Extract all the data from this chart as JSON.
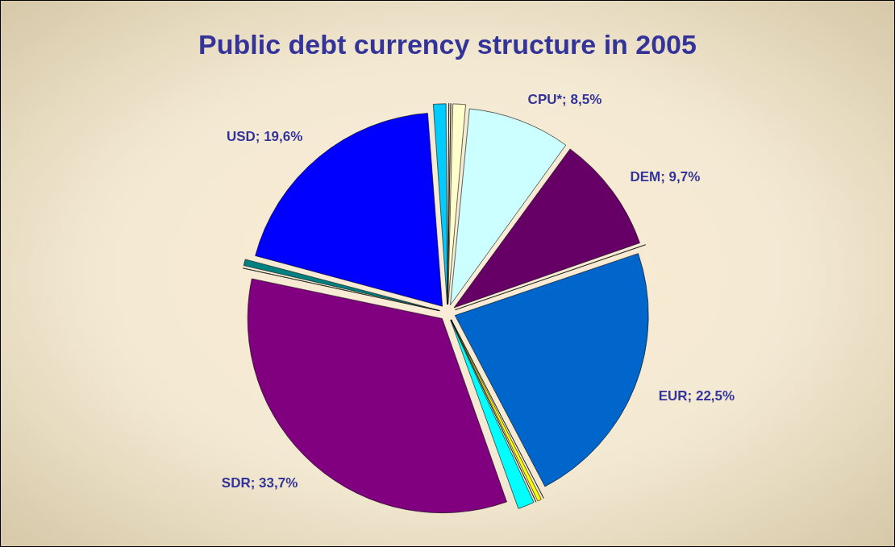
{
  "chart_data": {
    "type": "pie",
    "title": "Public debt currency structure in 2005",
    "categories": [
      null,
      null,
      null,
      "CPU*; 8,5%",
      "DEM; 9,7%",
      null,
      "EUR; 22,5%",
      null,
      null,
      null,
      null,
      "SDR; 33,7%",
      null,
      null,
      "USD; 19,6%",
      null
    ],
    "values": [
      0.2,
      0.1,
      1.2,
      8.5,
      9.7,
      0.1,
      22.5,
      0.2,
      0.5,
      0.1,
      1.5,
      33.7,
      0.2,
      0.7,
      19.6,
      1.2
    ],
    "colors": [
      "#9999ff",
      "#000080",
      "#ffffcc",
      "#ccffff",
      "#660066",
      "#ff8080",
      "#0066cc",
      "#000080",
      "#ffff00",
      "#ffffff",
      "#00ffff",
      "#800080",
      "#800000",
      "#008080",
      "#0000ff",
      "#00ccff"
    ],
    "legend": false
  }
}
